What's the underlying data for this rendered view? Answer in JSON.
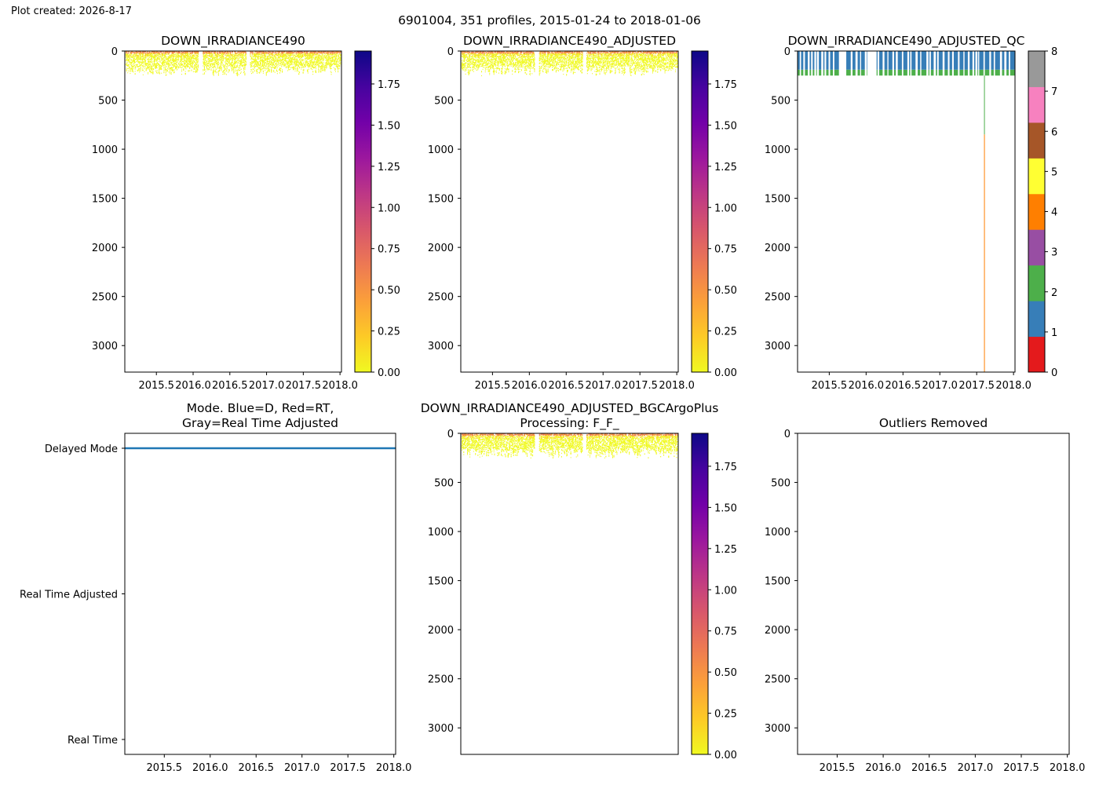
{
  "header": {
    "created": "Plot created: 2026-8-17",
    "suptitle": "6901004, 351 profiles, 2015-01-24 to 2018-01-06"
  },
  "colors": {
    "mode_line": "#1f77b4",
    "plasma": [
      "#f0f921",
      "#fdca26",
      "#fb9f3a",
      "#ed7953",
      "#d8576b",
      "#bd3786",
      "#9c179e",
      "#7201a8",
      "#46039f",
      "#0d0887"
    ],
    "qc": [
      "#e41a1c",
      "#377eb8",
      "#4daf4a",
      "#984ea3",
      "#ff7f00",
      "#ffff33",
      "#a65628",
      "#f781bf",
      "#999999"
    ]
  },
  "chart_data": [
    {
      "type": "heatmap",
      "title": "DOWN_IRRADIANCE490",
      "x_ticks": [
        "2015.5",
        "2016.0",
        "2016.5",
        "2017.0",
        "2017.5",
        "2018.0"
      ],
      "y_ticks": [
        "0",
        "500",
        "1000",
        "1500",
        "2000",
        "2500",
        "3000"
      ],
      "xlim": [
        2015.07,
        2018.02
      ],
      "ylim": [
        3270,
        0
      ],
      "data_depth_range": [
        0,
        250
      ],
      "colorbar": {
        "ticks": [
          "0.00",
          "0.25",
          "0.50",
          "0.75",
          "1.00",
          "1.25",
          "1.50",
          "1.75"
        ],
        "range": [
          0,
          1.95
        ],
        "cmap": "plasma_r"
      },
      "grid": false
    },
    {
      "type": "heatmap",
      "title": "DOWN_IRRADIANCE490_ADJUSTED",
      "x_ticks": [
        "2015.5",
        "2016.0",
        "2016.5",
        "2017.0",
        "2017.5",
        "2018.0"
      ],
      "y_ticks": [
        "0",
        "500",
        "1000",
        "1500",
        "2000",
        "2500",
        "3000"
      ],
      "xlim": [
        2015.07,
        2018.02
      ],
      "ylim": [
        3270,
        0
      ],
      "data_depth_range": [
        0,
        250
      ],
      "colorbar": {
        "ticks": [
          "0.00",
          "0.25",
          "0.50",
          "0.75",
          "1.00",
          "1.25",
          "1.50",
          "1.75"
        ],
        "range": [
          0,
          1.95
        ],
        "cmap": "plasma_r"
      },
      "grid": false
    },
    {
      "type": "heatmap",
      "title": "DOWN_IRRADIANCE490_ADJUSTED_QC",
      "x_ticks": [
        "2015.5",
        "2016.0",
        "2016.5",
        "2017.0",
        "2017.5",
        "2018.0"
      ],
      "y_ticks": [
        "0",
        "500",
        "1000",
        "1500",
        "2000",
        "2500",
        "3000"
      ],
      "xlim": [
        2015.07,
        2018.02
      ],
      "ylim": [
        3270,
        0
      ],
      "data_depth_range": [
        0,
        250
      ],
      "dominant_flags": [
        1,
        2
      ],
      "deep_profile": {
        "x": 2017.6,
        "flag_2_to_depth": 850,
        "flag_4_to_depth": 3270
      },
      "colorbar": {
        "ticks": [
          "0",
          "1",
          "2",
          "3",
          "4",
          "5",
          "6",
          "7",
          "8"
        ],
        "range": [
          0,
          8
        ],
        "cmap": "Set1"
      },
      "grid": false
    },
    {
      "type": "line",
      "title": "Mode. Blue=D, Red=RT,\nGray=Real Time Adjusted",
      "x_ticks": [
        "2015.5",
        "2016.0",
        "2016.5",
        "2017.0",
        "2017.5",
        "2018.0"
      ],
      "categories": [
        "Delayed Mode",
        "Real Time Adjusted",
        "Real Time"
      ],
      "xlim": [
        2015.07,
        2018.02
      ],
      "series": [
        {
          "x_range": [
            2015.07,
            2018.02
          ],
          "y": "Delayed Mode"
        }
      ],
      "grid": false
    },
    {
      "type": "heatmap",
      "title": "DOWN_IRRADIANCE490_ADJUSTED_BGCArgoPlus\nProcessing: F_F_",
      "x_ticks": [],
      "y_ticks": [
        "0",
        "500",
        "1000",
        "1500",
        "2000",
        "2500",
        "3000"
      ],
      "xlim": [
        2015.07,
        2018.02
      ],
      "ylim": [
        3270,
        0
      ],
      "data_depth_range": [
        0,
        250
      ],
      "colorbar": {
        "ticks": [
          "0.00",
          "0.25",
          "0.50",
          "0.75",
          "1.00",
          "1.25",
          "1.50",
          "1.75"
        ],
        "range": [
          0,
          1.95
        ],
        "cmap": "plasma_r"
      },
      "grid": false
    },
    {
      "type": "scatter",
      "title": "Outliers Removed",
      "x_ticks": [
        "2015.5",
        "2016.0",
        "2016.5",
        "2017.0",
        "2017.5",
        "2018.0"
      ],
      "y_ticks": [
        "0",
        "500",
        "1000",
        "1500",
        "2000",
        "2500",
        "3000"
      ],
      "xlim": [
        2015.07,
        2018.02
      ],
      "ylim": [
        3270,
        0
      ],
      "points": [],
      "grid": false
    }
  ]
}
